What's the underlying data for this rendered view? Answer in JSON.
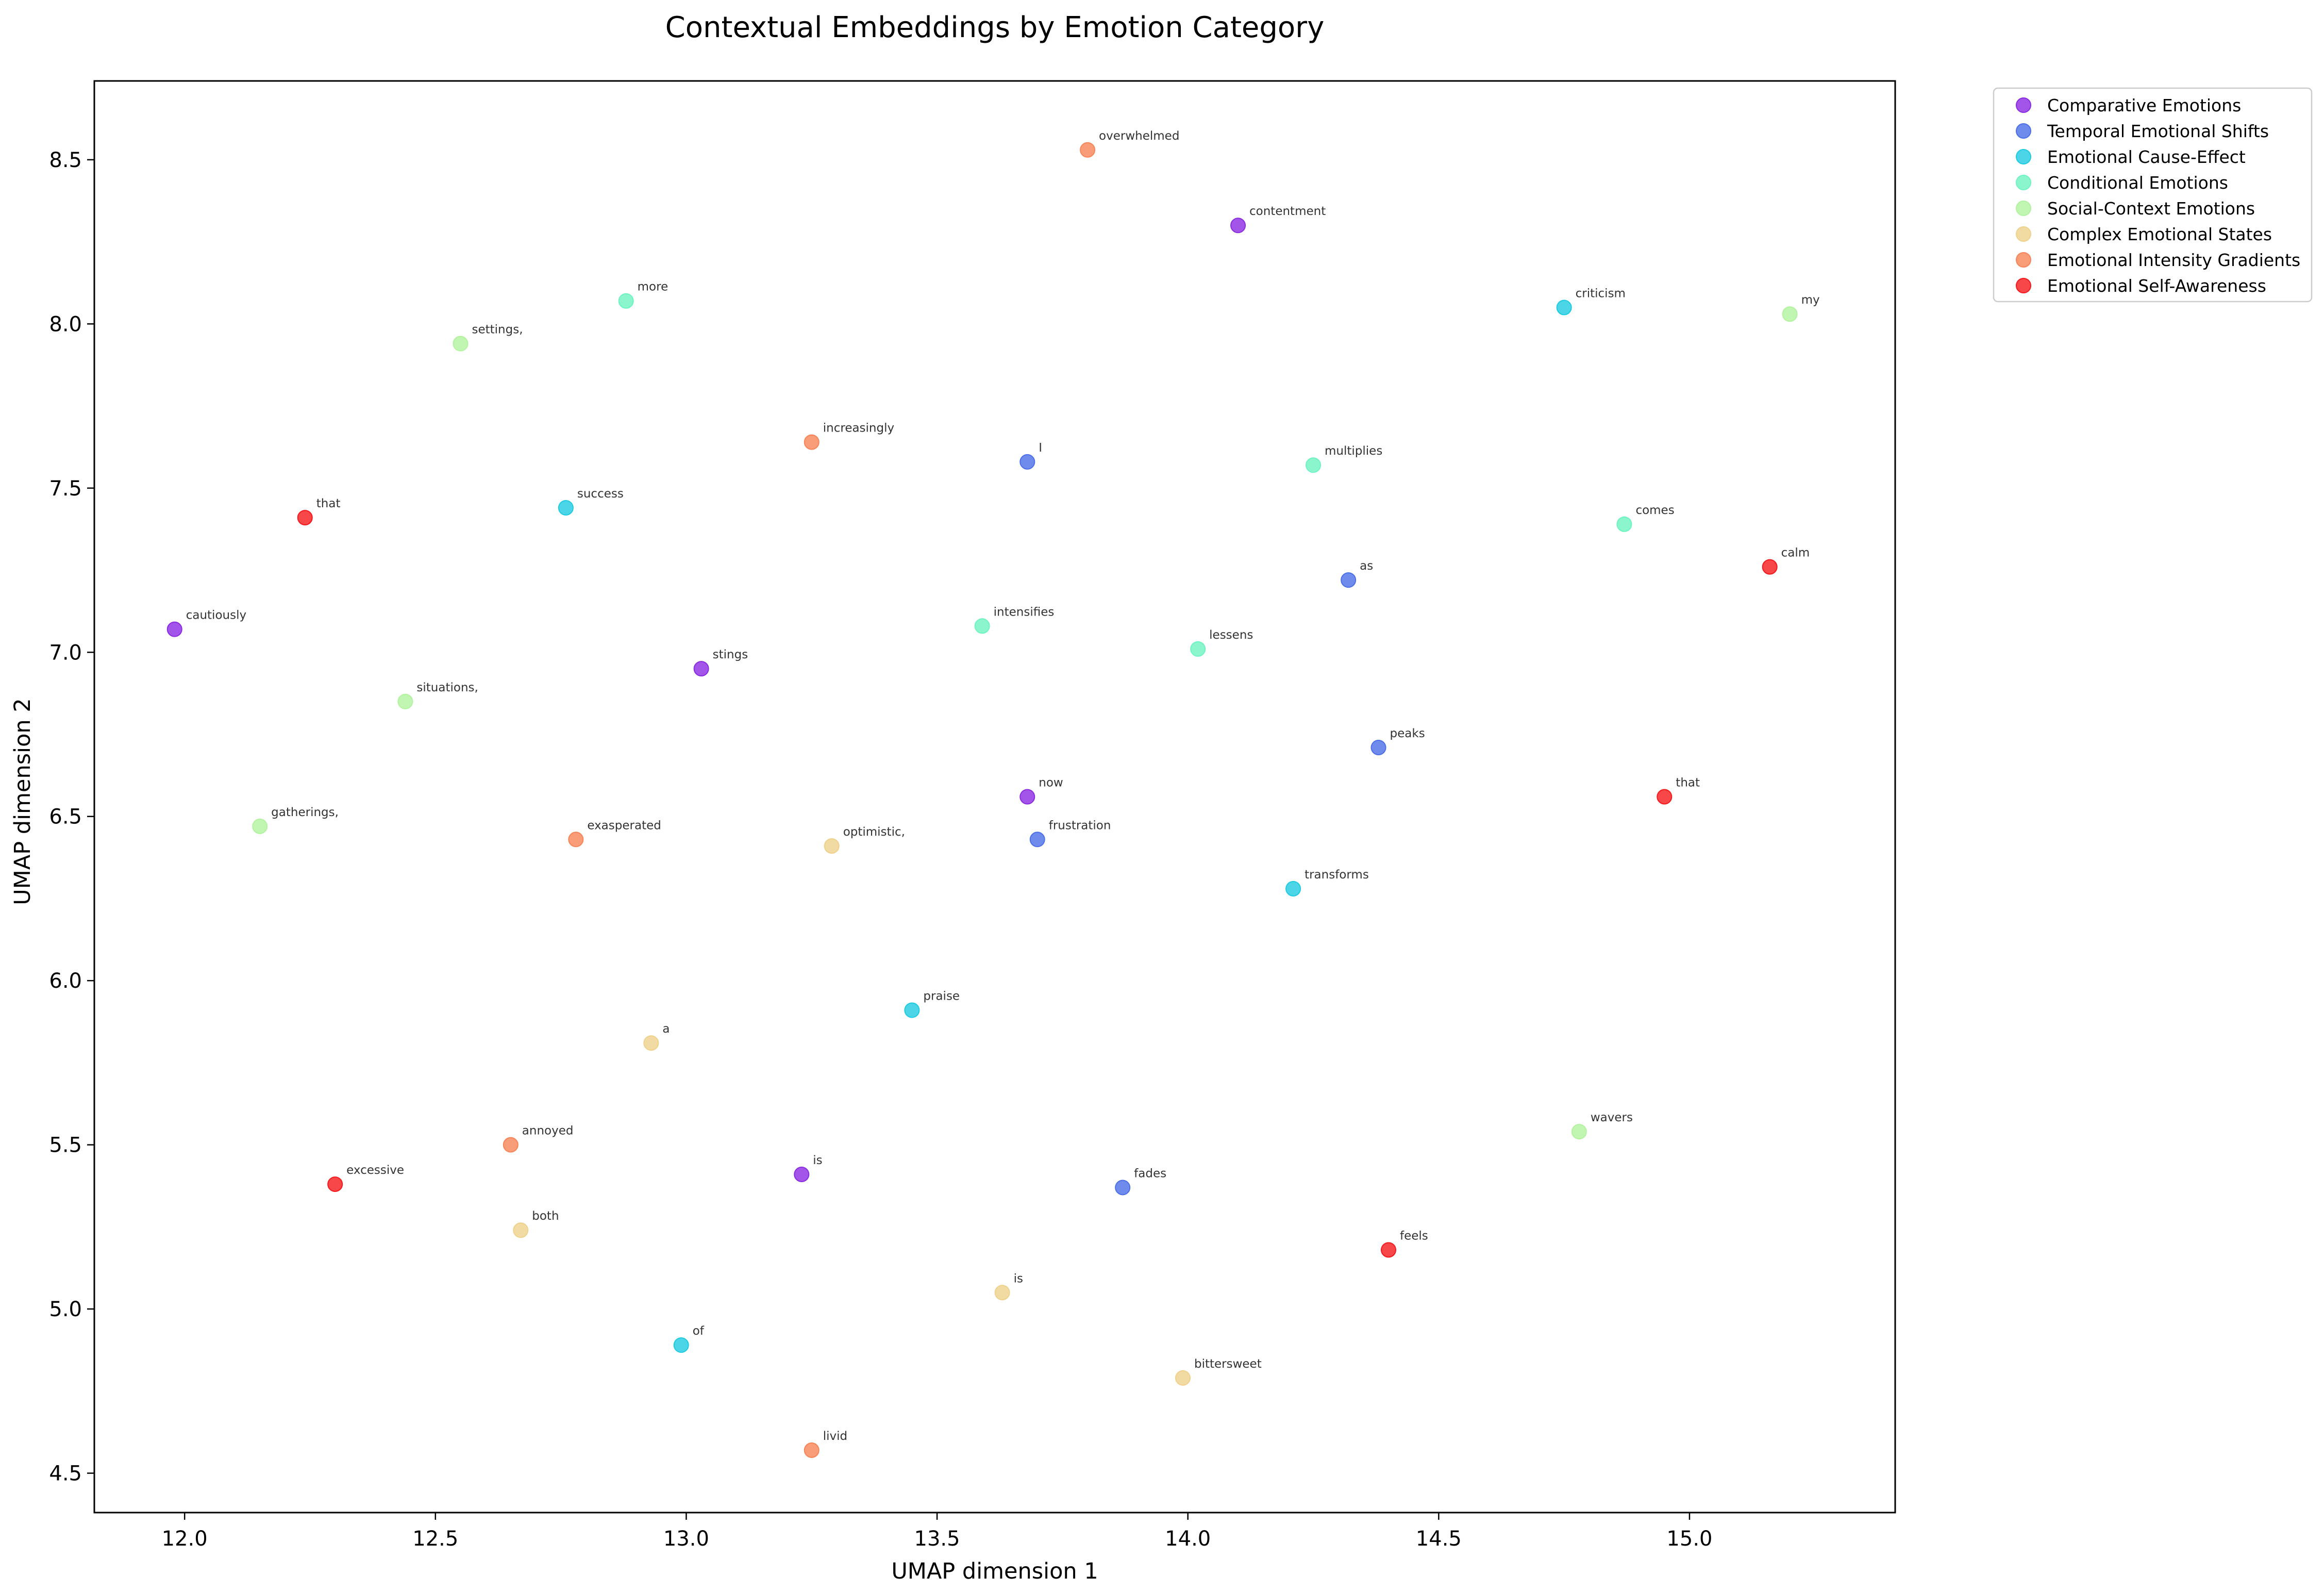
{
  "chart_data": {
    "type": "scatter",
    "title": "Contextual Embeddings by Emotion Category",
    "xlabel": "UMAP dimension 1",
    "ylabel": "UMAP dimension 2",
    "xlim": [
      11.82,
      15.41
    ],
    "ylim": [
      4.38,
      8.74
    ],
    "xticks": [
      12.0,
      12.5,
      13.0,
      13.5,
      14.0,
      14.5,
      15.0
    ],
    "yticks": [
      4.5,
      5.0,
      5.5,
      6.0,
      6.5,
      7.0,
      7.5,
      8.0,
      8.5
    ],
    "xtick_labels": [
      "12.0",
      "12.5",
      "13.0",
      "13.5",
      "14.0",
      "14.5",
      "15.0"
    ],
    "ytick_labels": [
      "4.5",
      "5.0",
      "5.5",
      "6.0",
      "6.5",
      "7.0",
      "7.5",
      "8.0",
      "8.5"
    ],
    "grid": false,
    "legend_position": "outside-top-right",
    "series": [
      {
        "name": "Comparative Emotions",
        "color": "#8b2be2",
        "points": [
          {
            "x": 14.1,
            "y": 8.3,
            "label": "contentment"
          },
          {
            "x": 11.98,
            "y": 7.07,
            "label": "cautiously"
          },
          {
            "x": 13.03,
            "y": 6.95,
            "label": "stings"
          },
          {
            "x": 13.68,
            "y": 6.56,
            "label": "now"
          },
          {
            "x": 13.23,
            "y": 5.41,
            "label": "is"
          }
        ]
      },
      {
        "name": "Temporal Emotional Shifts",
        "color": "#4b6fe9",
        "points": [
          {
            "x": 13.68,
            "y": 7.58,
            "label": "I"
          },
          {
            "x": 14.32,
            "y": 7.22,
            "label": "as"
          },
          {
            "x": 14.38,
            "y": 6.71,
            "label": "peaks"
          },
          {
            "x": 13.7,
            "y": 6.43,
            "label": "frustration"
          },
          {
            "x": 13.87,
            "y": 5.37,
            "label": "fades"
          }
        ]
      },
      {
        "name": "Emotional Cause-Effect",
        "color": "#1ecbe1",
        "points": [
          {
            "x": 14.75,
            "y": 8.05,
            "label": "criticism"
          },
          {
            "x": 12.76,
            "y": 7.44,
            "label": "success"
          },
          {
            "x": 14.21,
            "y": 6.28,
            "label": "transforms"
          },
          {
            "x": 13.45,
            "y": 5.91,
            "label": "praise"
          },
          {
            "x": 12.99,
            "y": 4.89,
            "label": "of"
          }
        ]
      },
      {
        "name": "Conditional Emotions",
        "color": "#6ef4c0",
        "points": [
          {
            "x": 12.88,
            "y": 8.07,
            "label": "more"
          },
          {
            "x": 14.25,
            "y": 7.57,
            "label": "multiplies"
          },
          {
            "x": 14.87,
            "y": 7.39,
            "label": "comes"
          },
          {
            "x": 13.59,
            "y": 7.08,
            "label": "intensifies"
          },
          {
            "x": 14.02,
            "y": 7.01,
            "label": "lessens"
          }
        ]
      },
      {
        "name": "Social-Context Emotions",
        "color": "#b2f39f",
        "points": [
          {
            "x": 12.55,
            "y": 7.94,
            "label": "settings,"
          },
          {
            "x": 15.2,
            "y": 8.03,
            "label": "my"
          },
          {
            "x": 12.44,
            "y": 6.85,
            "label": "situations,"
          },
          {
            "x": 12.15,
            "y": 6.47,
            "label": "gatherings,"
          },
          {
            "x": 14.78,
            "y": 5.54,
            "label": "wavers"
          }
        ]
      },
      {
        "name": "Complex Emotional States",
        "color": "#efd18c",
        "points": [
          {
            "x": 13.29,
            "y": 6.41,
            "label": "optimistic,"
          },
          {
            "x": 12.93,
            "y": 5.81,
            "label": "a"
          },
          {
            "x": 12.67,
            "y": 5.24,
            "label": "both"
          },
          {
            "x": 13.63,
            "y": 5.05,
            "label": "is"
          },
          {
            "x": 13.99,
            "y": 4.79,
            "label": "bittersweet"
          }
        ]
      },
      {
        "name": "Emotional Intensity Gradients",
        "color": "#f88458",
        "points": [
          {
            "x": 13.8,
            "y": 8.53,
            "label": "overwhelmed"
          },
          {
            "x": 13.25,
            "y": 7.64,
            "label": "increasingly"
          },
          {
            "x": 12.78,
            "y": 6.43,
            "label": "exasperated"
          },
          {
            "x": 12.65,
            "y": 5.5,
            "label": "annoyed"
          },
          {
            "x": 13.25,
            "y": 4.57,
            "label": "livid"
          }
        ]
      },
      {
        "name": "Emotional Self-Awareness",
        "color": "#f5191c",
        "points": [
          {
            "x": 12.24,
            "y": 7.41,
            "label": "that"
          },
          {
            "x": 15.16,
            "y": 7.26,
            "label": "calm"
          },
          {
            "x": 14.95,
            "y": 6.56,
            "label": "that"
          },
          {
            "x": 12.3,
            "y": 5.38,
            "label": "excessive"
          },
          {
            "x": 14.4,
            "y": 5.18,
            "label": "feels"
          }
        ]
      }
    ]
  }
}
